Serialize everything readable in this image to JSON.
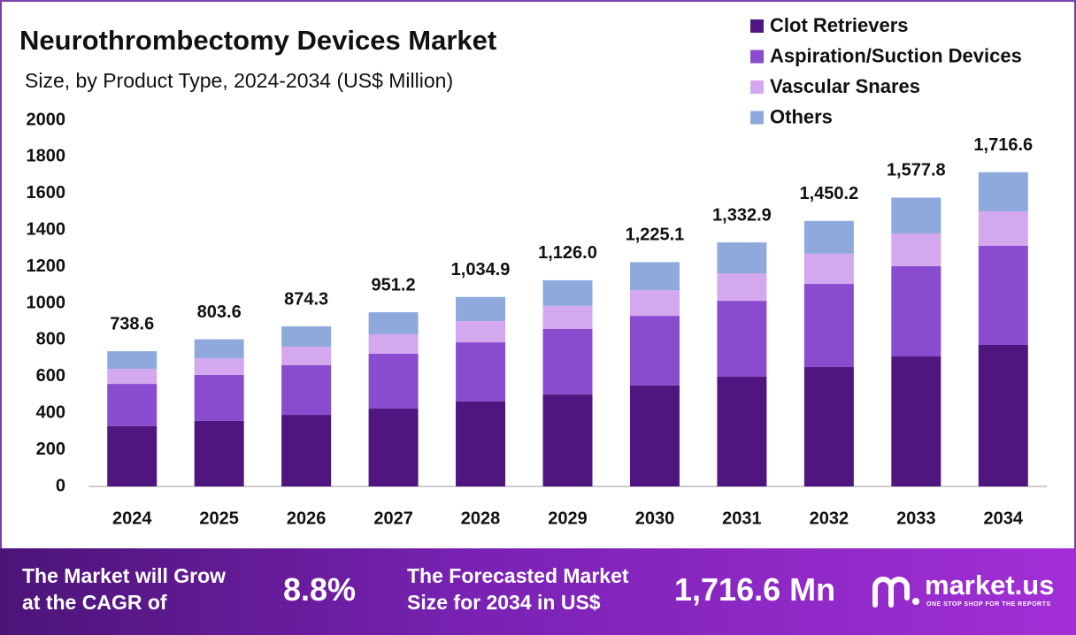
{
  "chart_data": {
    "type": "stacked_bar",
    "title": "Neurothrombectomy Devices Market",
    "subtitle": "Size, by Product Type, 2024-2034 (US$ Million)",
    "categories": [
      "2024",
      "2025",
      "2026",
      "2027",
      "2028",
      "2029",
      "2030",
      "2031",
      "2032",
      "2033",
      "2034"
    ],
    "series": [
      {
        "name": "Clot Retrievers",
        "color": "#4f1680",
        "values": [
          330,
          358,
          391,
          425,
          464,
          502,
          551,
          599,
          652,
          710,
          773
        ]
      },
      {
        "name": "Aspiration/Suction Devices",
        "color": "#8a4ccf",
        "values": [
          230,
          251,
          271,
          300,
          323,
          358,
          381,
          415,
          454,
          493,
          541
        ]
      },
      {
        "name": "Vascular Snares",
        "color": "#d4a8ef",
        "values": [
          82,
          90,
          101,
          106,
          116,
          126,
          140,
          150,
          165,
          179,
          188
        ]
      },
      {
        "name": "Others",
        "color": "#8fa9dc",
        "values": [
          96.6,
          104.6,
          111.3,
          120.2,
          131.9,
          140,
          153.1,
          168.9,
          179.2,
          195.8,
          214.6
        ]
      }
    ],
    "total_labels": [
      "738.6",
      "803.6",
      "874.3",
      "951.2",
      "1,034.9",
      "1,126.0",
      "1,225.1",
      "1,332.9",
      "1,450.2",
      "1,577.8",
      "1,716.6"
    ],
    "ylim": [
      0,
      2000
    ],
    "yticks": [
      0,
      200,
      400,
      600,
      800,
      1000,
      1200,
      1400,
      1600,
      1800,
      2000
    ],
    "grid": false,
    "legend": "top-right"
  },
  "footer": {
    "cagr_text": [
      "The Market will Grow",
      "at the CAGR of"
    ],
    "cagr_value": "8.8%",
    "forecast_text": [
      "The Forecasted Market",
      "Size for 2034 in US$"
    ],
    "forecast_value": "1,716.6 Mn",
    "brand": "market.us",
    "tagline": "ONE STOP SHOP FOR THE REPORTS"
  }
}
